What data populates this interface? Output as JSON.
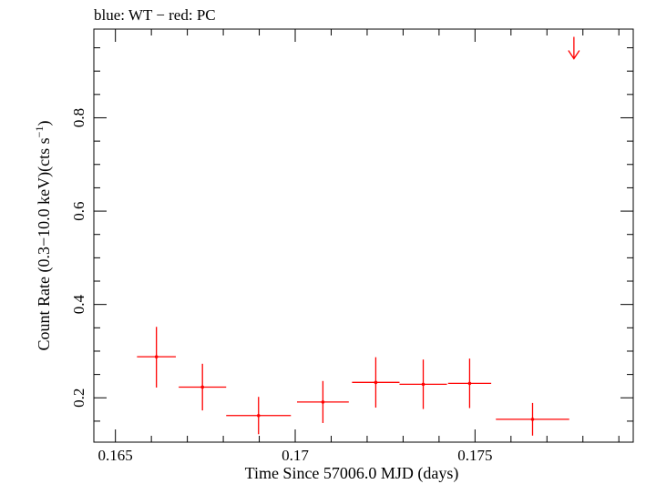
{
  "chart_data": {
    "type": "scatter",
    "title": "blue: WT − red: PC",
    "xlabel": "Time Since 57006.0 MJD (days)",
    "ylabel_main": "Count Rate (0.3−10.0 keV)(cts s",
    "ylabel_sup": "−1",
    "ylabel_tail": ")",
    "xlim": [
      0.1644,
      0.1794
    ],
    "ylim": [
      0.105,
      0.99
    ],
    "x_ticks": [
      {
        "value": 0.165,
        "label": "0.165"
      },
      {
        "value": 0.17,
        "label": "0.17"
      },
      {
        "value": 0.175,
        "label": "0.175"
      }
    ],
    "x_minor_ticks": [
      0.166,
      0.167,
      0.168,
      0.169,
      0.171,
      0.172,
      0.173,
      0.174,
      0.176,
      0.177,
      0.178,
      0.179
    ],
    "y_ticks": [
      {
        "value": 0.2,
        "label": "0.2"
      },
      {
        "value": 0.4,
        "label": "0.4"
      },
      {
        "value": 0.6,
        "label": "0.6"
      },
      {
        "value": 0.8,
        "label": "0.8"
      }
    ],
    "y_minor_ticks": [
      0.15,
      0.25,
      0.3,
      0.35,
      0.45,
      0.5,
      0.55,
      0.65,
      0.7,
      0.75,
      0.85,
      0.9,
      0.95
    ],
    "grid": false,
    "series": [
      {
        "color": "#ff0000",
        "points": [
          {
            "x": 0.16614,
            "xerr": 0.00054,
            "y": 0.288,
            "yerr_lo": 0.066,
            "yerr_hi": 0.064
          },
          {
            "x": 0.16742,
            "xerr": 0.00066,
            "y": 0.223,
            "yerr_lo": 0.05,
            "yerr_hi": 0.05
          },
          {
            "x": 0.16898,
            "xerr": 0.0009,
            "y": 0.162,
            "yerr_lo": 0.04,
            "yerr_hi": 0.04
          },
          {
            "x": 0.17077,
            "xerr": 0.00072,
            "y": 0.191,
            "yerr_lo": 0.045,
            "yerr_hi": 0.045
          },
          {
            "x": 0.17224,
            "xerr": 0.00066,
            "y": 0.233,
            "yerr_lo": 0.054,
            "yerr_hi": 0.054
          },
          {
            "x": 0.17356,
            "xerr": 0.00066,
            "y": 0.229,
            "yerr_lo": 0.053,
            "yerr_hi": 0.053
          },
          {
            "x": 0.17485,
            "xerr": 0.0006,
            "y": 0.231,
            "yerr_lo": 0.053,
            "yerr_hi": 0.053
          },
          {
            "x": 0.1766,
            "xerr": 0.00102,
            "y": 0.154,
            "yerr_lo": 0.035,
            "yerr_hi": 0.035
          }
        ],
        "upper_limits": [
          {
            "x": 0.17775,
            "y": 0.95
          }
        ]
      }
    ]
  }
}
